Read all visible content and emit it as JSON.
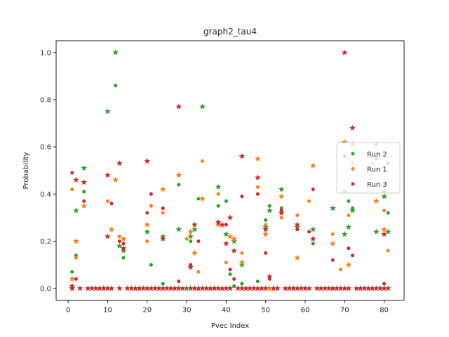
{
  "chart_data": {
    "type": "scatter",
    "title": "graph2_tau4",
    "xlabel": "Pvec Index",
    "ylabel": "Probability",
    "xlim": [
      -3.05,
      85.05
    ],
    "ylim": [
      -0.05,
      1.05
    ],
    "x_ticks": [
      0,
      10,
      20,
      30,
      40,
      50,
      60,
      70,
      80
    ],
    "y_ticks": [
      0.0,
      0.2,
      0.4,
      0.6,
      0.8,
      1.0
    ],
    "x_tick_labels": [
      "0",
      "10",
      "20",
      "30",
      "40",
      "50",
      "60",
      "70",
      "80"
    ],
    "y_tick_labels": [
      "0.0",
      "0.2",
      "0.4",
      "0.6",
      "0.8",
      "1.0"
    ],
    "grid": false,
    "legend_position": "right",
    "series": [
      {
        "name": "Run 2",
        "color": "#2ca02c",
        "dots": [
          [
            1,
            0.07
          ],
          [
            2,
            0.14
          ],
          [
            4,
            0.41
          ],
          [
            9,
            0.0
          ],
          [
            12,
            0.86
          ],
          [
            14,
            0.13
          ],
          [
            18,
            0.0
          ],
          [
            21,
            0.1
          ],
          [
            24,
            0.02
          ],
          [
            28,
            0.44
          ],
          [
            31,
            0.2
          ],
          [
            33,
            0.38
          ],
          [
            37,
            0.0
          ],
          [
            38,
            0.35
          ],
          [
            40,
            0.37
          ],
          [
            41,
            0.06
          ],
          [
            42,
            0.01
          ],
          [
            44,
            0.02
          ],
          [
            48,
            0.03
          ],
          [
            50,
            0.29
          ],
          [
            51,
            0.35
          ],
          [
            54,
            0.34
          ],
          [
            57,
            0.0
          ],
          [
            62,
            0.19
          ],
          [
            67,
            0.0
          ],
          [
            70,
            0.41
          ],
          [
            71,
            0.37
          ],
          [
            72,
            0.34
          ],
          [
            78,
            0.61
          ],
          [
            80,
            0.41
          ],
          [
            81,
            0.32
          ]
        ],
        "stars": [
          [
            1,
            0.0
          ],
          [
            2,
            0.33
          ],
          [
            4,
            0.51
          ],
          [
            10,
            0.75
          ],
          [
            12,
            1.0
          ],
          [
            13,
            0.18
          ],
          [
            14,
            0.16
          ],
          [
            20,
            0.24
          ],
          [
            24,
            0.22
          ],
          [
            28,
            0.25
          ],
          [
            30,
            0.0
          ],
          [
            31,
            0.22
          ],
          [
            32,
            0.25
          ],
          [
            34,
            0.77
          ],
          [
            38,
            0.43
          ],
          [
            40,
            0.23
          ],
          [
            41,
            0.0
          ],
          [
            42,
            0.2
          ],
          [
            44,
            0.1
          ],
          [
            50,
            0.26
          ],
          [
            51,
            0.33
          ],
          [
            54,
            0.42
          ],
          [
            58,
            0.26
          ],
          [
            62,
            0.25
          ],
          [
            67,
            0.34
          ],
          [
            70,
            0.23
          ],
          [
            71,
            0.26
          ],
          [
            72,
            0.33
          ],
          [
            78,
            0.24
          ],
          [
            80,
            0.39
          ],
          [
            81,
            0.24
          ]
        ]
      },
      {
        "name": "Run 1",
        "color": "#ff7f0e",
        "dots": [
          [
            1,
            0.42
          ],
          [
            2,
            0.13
          ],
          [
            10,
            0.37
          ],
          [
            13,
            0.22
          ],
          [
            20,
            0.2
          ],
          [
            21,
            0.35
          ],
          [
            24,
            0.32
          ],
          [
            30,
            0.21
          ],
          [
            33,
            0.07
          ],
          [
            34,
            0.54
          ],
          [
            38,
            0.4
          ],
          [
            40,
            0.11
          ],
          [
            42,
            0.21
          ],
          [
            44,
            0.15
          ],
          [
            48,
            0.43
          ],
          [
            50,
            0.27
          ],
          [
            54,
            0.3
          ],
          [
            58,
            0.31
          ],
          [
            61,
            0.37
          ],
          [
            67,
            0.23
          ],
          [
            69,
            0.08
          ],
          [
            71,
            0.31
          ],
          [
            72,
            0.53
          ],
          [
            77,
            0.53
          ],
          [
            80,
            0.33
          ],
          [
            81,
            0.16
          ]
        ],
        "stars": [
          [
            1,
            0.04
          ],
          [
            2,
            0.2
          ],
          [
            4,
            0.35
          ],
          [
            10,
            0.48
          ],
          [
            11,
            0.25
          ],
          [
            12,
            0.46
          ],
          [
            14,
            0.21
          ],
          [
            20,
            0.27
          ],
          [
            24,
            0.42
          ],
          [
            28,
            0.48
          ],
          [
            31,
            0.24
          ],
          [
            32,
            0.15
          ],
          [
            34,
            0.38
          ],
          [
            38,
            0.27
          ],
          [
            41,
            0.22
          ],
          [
            42,
            0.21
          ],
          [
            44,
            0.11
          ],
          [
            48,
            0.55
          ],
          [
            50,
            0.23
          ],
          [
            51,
            0.0
          ],
          [
            54,
            0.39
          ],
          [
            58,
            0.13
          ],
          [
            62,
            0.52
          ],
          [
            67,
            0.19
          ],
          [
            70,
            0.62
          ],
          [
            71,
            0.1
          ],
          [
            72,
            0.61
          ],
          [
            78,
            0.37
          ],
          [
            80,
            0.25
          ]
        ]
      },
      {
        "name": "Run 3",
        "color": "#d62728",
        "dots": [
          [
            1,
            0.49
          ],
          [
            2,
            0.04
          ],
          [
            4,
            0.37
          ],
          [
            10,
            0.48
          ],
          [
            11,
            0.36
          ],
          [
            13,
            0.2
          ],
          [
            14,
            0.19
          ],
          [
            20,
            0.32
          ],
          [
            21,
            0.4
          ],
          [
            24,
            0.34
          ],
          [
            28,
            0.03
          ],
          [
            31,
            0.1
          ],
          [
            33,
            0.2
          ],
          [
            38,
            0.28
          ],
          [
            40,
            0.27
          ],
          [
            41,
            0.08
          ],
          [
            42,
            0.04
          ],
          [
            44,
            0.39
          ],
          [
            48,
            0.4
          ],
          [
            50,
            0.15
          ],
          [
            51,
            0.04
          ],
          [
            54,
            0.33
          ],
          [
            58,
            0.25
          ],
          [
            61,
            0.24
          ],
          [
            62,
            0.42
          ],
          [
            67,
            0.12
          ],
          [
            70,
            0.56
          ],
          [
            71,
            0.17
          ],
          [
            72,
            0.14
          ],
          [
            78,
            0.55
          ],
          [
            80,
            0.02
          ],
          [
            81,
            0.53
          ]
        ],
        "stars": [
          [
            1,
            0.01
          ],
          [
            2,
            0.46
          ],
          [
            4,
            0.45
          ],
          [
            10,
            0.22
          ],
          [
            13,
            0.53
          ],
          [
            14,
            0.17
          ],
          [
            20,
            0.54
          ],
          [
            24,
            0.21
          ],
          [
            28,
            0.77
          ],
          [
            31,
            0.09
          ],
          [
            32,
            0.27
          ],
          [
            38,
            0.28
          ],
          [
            39,
            0.27
          ],
          [
            40,
            0.19
          ],
          [
            41,
            0.3
          ],
          [
            42,
            0.16
          ],
          [
            44,
            0.56
          ],
          [
            48,
            0.47
          ],
          [
            50,
            0.25
          ],
          [
            51,
            0.05
          ],
          [
            54,
            0.32
          ],
          [
            58,
            0.27
          ],
          [
            62,
            0.21
          ],
          [
            70,
            1.0
          ],
          [
            72,
            0.68
          ],
          [
            80,
            0.23
          ]
        ],
        "zero_stars": [
          1,
          3,
          5,
          6,
          7,
          8,
          9,
          10,
          11,
          13,
          15,
          16,
          17,
          18,
          19,
          20,
          21,
          22,
          23,
          24,
          25,
          26,
          27,
          28,
          29,
          31,
          32,
          33,
          34,
          35,
          36,
          37,
          38,
          39,
          40,
          41,
          43,
          44,
          45,
          46,
          47,
          48,
          49,
          50,
          52,
          53,
          55,
          56,
          57,
          58,
          59,
          60,
          61,
          63,
          64,
          65,
          66,
          67,
          68,
          69,
          70,
          71,
          73,
          74,
          75,
          76,
          77,
          78,
          79,
          80,
          81
        ]
      }
    ]
  }
}
